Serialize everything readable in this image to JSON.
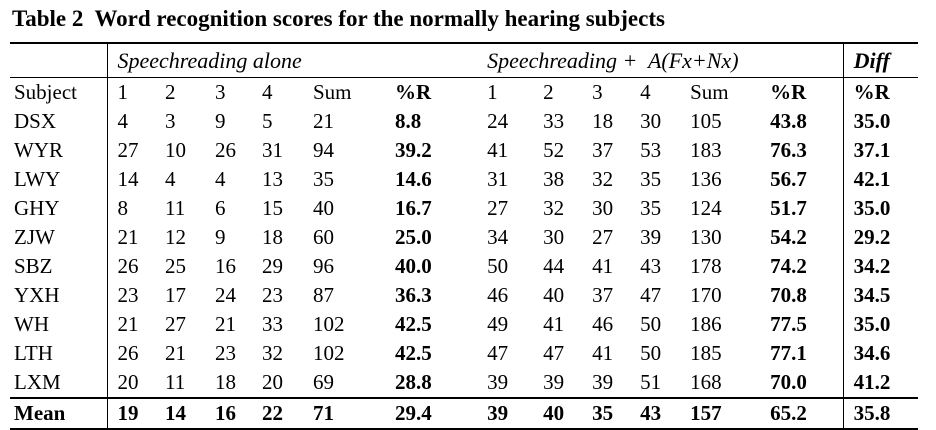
{
  "title": "Table 2  Word recognition scores for the normally hearing subjects",
  "table": {
    "group_headers": [
      "Speechreading alone",
      "Speechreading +  A(Fx+Nx)",
      "Diff"
    ],
    "column_headers": [
      "Subject",
      "1",
      "2",
      "3",
      "4",
      "Sum",
      "%R",
      "1",
      "2",
      "3",
      "4",
      "Sum",
      "%R",
      "%R"
    ],
    "rows": [
      [
        "DSX",
        "4",
        "3",
        "9",
        "5",
        "21",
        "8.8",
        "24",
        "33",
        "18",
        "30",
        "105",
        "43.8",
        "35.0"
      ],
      [
        "WYR",
        "27",
        "10",
        "26",
        "31",
        "94",
        "39.2",
        "41",
        "52",
        "37",
        "53",
        "183",
        "76.3",
        "37.1"
      ],
      [
        "LWY",
        "14",
        "4",
        "4",
        "13",
        "35",
        "14.6",
        "31",
        "38",
        "32",
        "35",
        "136",
        "56.7",
        "42.1"
      ],
      [
        "GHY",
        "8",
        "11",
        "6",
        "15",
        "40",
        "16.7",
        "27",
        "32",
        "30",
        "35",
        "124",
        "51.7",
        "35.0"
      ],
      [
        "ZJW",
        "21",
        "12",
        "9",
        "18",
        "60",
        "25.0",
        "34",
        "30",
        "27",
        "39",
        "130",
        "54.2",
        "29.2"
      ],
      [
        "SBZ",
        "26",
        "25",
        "16",
        "29",
        "96",
        "40.0",
        "50",
        "44",
        "41",
        "43",
        "178",
        "74.2",
        "34.2"
      ],
      [
        "YXH",
        "23",
        "17",
        "24",
        "23",
        "87",
        "36.3",
        "46",
        "40",
        "37",
        "47",
        "170",
        "70.8",
        "34.5"
      ],
      [
        "WH",
        "21",
        "27",
        "21",
        "33",
        "102",
        "42.5",
        "49",
        "41",
        "46",
        "50",
        "186",
        "77.5",
        "35.0"
      ],
      [
        "LTH",
        "26",
        "21",
        "23",
        "32",
        "102",
        "42.5",
        "47",
        "47",
        "41",
        "50",
        "185",
        "77.1",
        "34.6"
      ],
      [
        "LXM",
        "20",
        "11",
        "18",
        "20",
        "69",
        "28.8",
        "39",
        "39",
        "39",
        "51",
        "168",
        "70.0",
        "41.2"
      ]
    ],
    "mean": [
      "Mean",
      "19",
      "14",
      "16",
      "22",
      "71",
      "29.4",
      "39",
      "40",
      "35",
      "43",
      "157",
      "65.2",
      "35.8"
    ]
  }
}
